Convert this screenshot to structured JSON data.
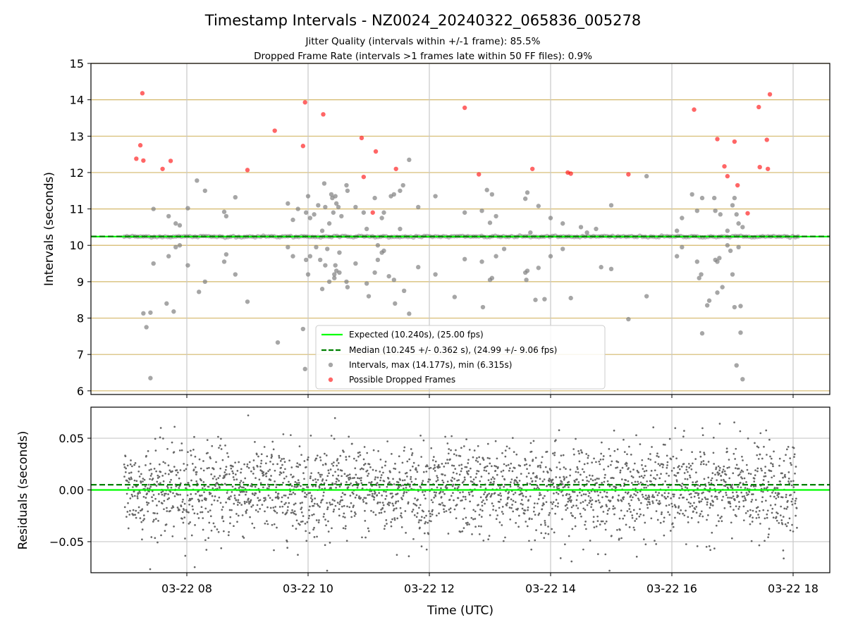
{
  "title": "Timestamp Intervals - NZ0024_20240322_065836_005278",
  "subtitle_line1": "Jitter Quality (intervals within +/-1 frame): 85.5%",
  "subtitle_line2": "Dropped Frame Rate (intervals >1 frames late within 50 FF files): 0.9%",
  "colors": {
    "expected": "#00ff00",
    "median": "#008000",
    "interval_points": "#808080",
    "dropped_points": "#ff0000",
    "hgrid": "#d4b86a",
    "vgrid": "#c8c8c8"
  },
  "chart_data": [
    {
      "type": "scatter",
      "panel": "top",
      "ylabel": "Intervals (seconds)",
      "ylim": [
        5.9,
        15
      ],
      "yticks": [
        "6",
        "7",
        "8",
        "9",
        "10",
        "11",
        "12",
        "13",
        "14",
        "15"
      ],
      "grid": true,
      "legend_placement": "lower-center",
      "legend": [
        "Expected (10.240s), (25.00 fps)",
        "Median (10.245 +/- 0.362 s), (24.99 +/- 9.06 fps)",
        "Intervals, max (14.177s), min (6.315s)",
        "Possible Dropped Frames"
      ],
      "expected": 10.24,
      "median": 10.245,
      "band_value": 10.24,
      "x_range_hours": [
        "06:58",
        "18:05"
      ],
      "series": [
        {
          "name": "Intervals, max (14.177s), min (6.315s)",
          "points": [
            [
              "07:17",
              8.13
            ],
            [
              "07:20",
              7.75
            ],
            [
              "07:24",
              8.15
            ],
            [
              "07:24",
              6.35
            ],
            [
              "07:27",
              11.0
            ],
            [
              "07:27",
              9.5
            ],
            [
              "07:40",
              8.4
            ],
            [
              "07:42",
              10.8
            ],
            [
              "07:42",
              9.7
            ],
            [
              "07:47",
              8.18
            ],
            [
              "07:49",
              9.95
            ],
            [
              "07:49",
              10.6
            ],
            [
              "07:53",
              10.55
            ],
            [
              "07:53",
              10.0
            ],
            [
              "08:01",
              11.02
            ],
            [
              "08:01",
              9.45
            ],
            [
              "08:10",
              11.78
            ],
            [
              "08:12",
              8.72
            ],
            [
              "08:18",
              11.5
            ],
            [
              "08:18",
              9.0
            ],
            [
              "08:37",
              9.55
            ],
            [
              "08:37",
              10.92
            ],
            [
              "08:39",
              10.8
            ],
            [
              "08:39",
              9.75
            ],
            [
              "08:48",
              11.32
            ],
            [
              "08:48",
              9.2
            ],
            [
              "09:00",
              8.45
            ],
            [
              "09:30",
              7.33
            ],
            [
              "09:40",
              11.15
            ],
            [
              "09:40",
              9.95
            ],
            [
              "09:45",
              10.7
            ],
            [
              "09:45",
              9.7
            ],
            [
              "09:50",
              11.0
            ],
            [
              "09:55",
              7.7
            ],
            [
              "09:57",
              6.6
            ],
            [
              "09:58",
              10.9
            ],
            [
              "09:58",
              9.6
            ],
            [
              "10:00",
              11.35
            ],
            [
              "10:00",
              9.2
            ],
            [
              "10:02",
              10.75
            ],
            [
              "10:02",
              9.7
            ],
            [
              "10:06",
              10.85
            ],
            [
              "10:08",
              9.95
            ],
            [
              "10:10",
              11.1
            ],
            [
              "10:12",
              9.6
            ],
            [
              "10:14",
              10.4
            ],
            [
              "10:14",
              8.8
            ],
            [
              "10:16",
              11.7
            ],
            [
              "10:17",
              11.05
            ],
            [
              "10:17",
              9.45
            ],
            [
              "10:19",
              9.9
            ],
            [
              "10:21",
              10.6
            ],
            [
              "10:21",
              9.0
            ],
            [
              "10:23",
              11.4
            ],
            [
              "10:24",
              11.3
            ],
            [
              "10:25",
              10.9
            ],
            [
              "10:26",
              9.2
            ],
            [
              "10:26",
              9.1
            ],
            [
              "10:27",
              11.35
            ],
            [
              "10:27",
              9.45
            ],
            [
              "10:28",
              11.15
            ],
            [
              "10:28",
              9.3
            ],
            [
              "10:30",
              11.05
            ],
            [
              "10:31",
              9.8
            ],
            [
              "10:31",
              9.25
            ],
            [
              "10:33",
              10.8
            ],
            [
              "10:38",
              11.65
            ],
            [
              "10:38",
              9.0
            ],
            [
              "10:39",
              11.5
            ],
            [
              "10:39",
              8.85
            ],
            [
              "10:47",
              11.05
            ],
            [
              "10:47",
              9.5
            ],
            [
              "10:55",
              10.9
            ],
            [
              "10:58",
              10.45
            ],
            [
              "10:58",
              8.95
            ],
            [
              "11:00",
              8.6
            ],
            [
              "11:06",
              11.3
            ],
            [
              "11:06",
              9.25
            ],
            [
              "11:09",
              10.0
            ],
            [
              "11:09",
              9.6
            ],
            [
              "11:13",
              10.75
            ],
            [
              "11:13",
              9.8
            ],
            [
              "11:15",
              10.9
            ],
            [
              "11:15",
              9.85
            ],
            [
              "11:20",
              9.15
            ],
            [
              "11:22",
              11.35
            ],
            [
              "11:25",
              11.4
            ],
            [
              "11:25",
              9.05
            ],
            [
              "11:26",
              8.4
            ],
            [
              "11:31",
              11.5
            ],
            [
              "11:31",
              10.45
            ],
            [
              "11:34",
              11.65
            ],
            [
              "11:35",
              8.75
            ],
            [
              "11:40",
              12.35
            ],
            [
              "11:40",
              8.12
            ],
            [
              "11:49",
              11.05
            ],
            [
              "11:49",
              9.4
            ],
            [
              "12:06",
              11.35
            ],
            [
              "12:06",
              9.2
            ],
            [
              "12:25",
              8.58
            ],
            [
              "12:35",
              10.9
            ],
            [
              "12:35",
              9.62
            ],
            [
              "12:52",
              10.95
            ],
            [
              "12:52",
              9.55
            ],
            [
              "12:53",
              8.3
            ],
            [
              "12:57",
              11.52
            ],
            [
              "13:00",
              10.62
            ],
            [
              "13:00",
              9.05
            ],
            [
              "13:02",
              11.4
            ],
            [
              "13:02",
              9.1
            ],
            [
              "13:06",
              10.8
            ],
            [
              "13:06",
              9.7
            ],
            [
              "13:14",
              9.9
            ],
            [
              "13:35",
              11.28
            ],
            [
              "13:35",
              9.25
            ],
            [
              "13:36",
              9.05
            ],
            [
              "13:37",
              11.45
            ],
            [
              "13:37",
              9.3
            ],
            [
              "13:40",
              10.35
            ],
            [
              "13:45",
              8.5
            ],
            [
              "13:48",
              11.08
            ],
            [
              "13:48",
              9.38
            ],
            [
              "13:54",
              8.52
            ],
            [
              "14:00",
              10.75
            ],
            [
              "14:00",
              9.7
            ],
            [
              "14:12",
              10.6
            ],
            [
              "14:12",
              9.9
            ],
            [
              "14:20",
              8.55
            ],
            [
              "14:30",
              10.5
            ],
            [
              "14:36",
              10.35
            ],
            [
              "14:45",
              10.45
            ],
            [
              "14:50",
              9.4
            ],
            [
              "15:00",
              11.1
            ],
            [
              "15:00",
              9.35
            ],
            [
              "15:17",
              7.97
            ],
            [
              "15:35",
              8.6
            ],
            [
              "15:35",
              11.9
            ],
            [
              "16:05",
              10.4
            ],
            [
              "16:05",
              9.7
            ],
            [
              "16:10",
              9.95
            ],
            [
              "16:10",
              10.75
            ],
            [
              "16:20",
              11.4
            ],
            [
              "16:25",
              10.95
            ],
            [
              "16:25",
              9.55
            ],
            [
              "16:27",
              9.1
            ],
            [
              "16:29",
              9.2
            ],
            [
              "16:30",
              11.3
            ],
            [
              "16:30",
              7.58
            ],
            [
              "16:35",
              8.35
            ],
            [
              "16:37",
              8.48
            ],
            [
              "16:42",
              11.3
            ],
            [
              "16:43",
              10.95
            ],
            [
              "16:43",
              9.6
            ],
            [
              "16:45",
              9.55
            ],
            [
              "16:45",
              8.7
            ],
            [
              "16:47",
              9.65
            ],
            [
              "16:48",
              10.85
            ],
            [
              "16:50",
              8.85
            ],
            [
              "16:55",
              10.4
            ],
            [
              "16:55",
              10.0
            ],
            [
              "16:58",
              9.85
            ],
            [
              "17:00",
              11.1
            ],
            [
              "17:00",
              9.2
            ],
            [
              "17:02",
              11.3
            ],
            [
              "17:02",
              8.3
            ],
            [
              "17:04",
              10.85
            ],
            [
              "17:04",
              6.7
            ],
            [
              "17:06",
              10.6
            ],
            [
              "17:06",
              9.95
            ],
            [
              "17:08",
              7.6
            ],
            [
              "17:08",
              8.33
            ],
            [
              "17:10",
              6.32
            ],
            [
              "17:10",
              10.5
            ]
          ]
        },
        {
          "name": "Possible Dropped Frames",
          "points": [
            [
              "07:10",
              12.38
            ],
            [
              "07:14",
              12.75
            ],
            [
              "07:16",
              14.18
            ],
            [
              "07:17",
              12.33
            ],
            [
              "07:36",
              12.1
            ],
            [
              "07:44",
              12.32
            ],
            [
              "09:00",
              12.07
            ],
            [
              "09:27",
              13.15
            ],
            [
              "09:55",
              12.73
            ],
            [
              "09:57",
              13.93
            ],
            [
              "10:15",
              13.6
            ],
            [
              "10:53",
              12.95
            ],
            [
              "10:55",
              11.88
            ],
            [
              "11:04",
              10.9
            ],
            [
              "11:07",
              12.58
            ],
            [
              "11:27",
              12.1
            ],
            [
              "12:35",
              13.78
            ],
            [
              "12:49",
              11.95
            ],
            [
              "13:42",
              12.1
            ],
            [
              "14:17",
              12.0
            ],
            [
              "14:20",
              11.97
            ],
            [
              "15:17",
              11.95
            ],
            [
              "16:22",
              13.73
            ],
            [
              "16:45",
              12.92
            ],
            [
              "16:52",
              12.17
            ],
            [
              "16:55",
              11.9
            ],
            [
              "17:02",
              12.85
            ],
            [
              "17:05",
              11.65
            ],
            [
              "17:15",
              10.88
            ],
            [
              "17:26",
              13.8
            ],
            [
              "17:27",
              12.15
            ],
            [
              "17:34",
              12.9
            ],
            [
              "17:35",
              12.1
            ],
            [
              "17:37",
              14.15
            ]
          ]
        }
      ]
    },
    {
      "type": "scatter",
      "panel": "bottom",
      "ylabel": "Residuals (seconds)",
      "xlabel": "Time (UTC)",
      "ylim": [
        -0.08,
        0.08
      ],
      "yticks": [
        "0.05",
        "0.00",
        "−0.05"
      ],
      "xticks": [
        "03-22 08",
        "03-22 10",
        "03-22 12",
        "03-22 14",
        "03-22 16",
        "03-22 18"
      ],
      "grid": true,
      "expected": 0.0,
      "median": 0.005,
      "series": [
        {
          "name": "Residuals",
          "distribution": "dense random noise around 0",
          "x_range": [
            "06:58",
            "18:04"
          ],
          "spread_std": 0.022,
          "y_range": [
            -0.078,
            0.078
          ]
        }
      ]
    }
  ]
}
